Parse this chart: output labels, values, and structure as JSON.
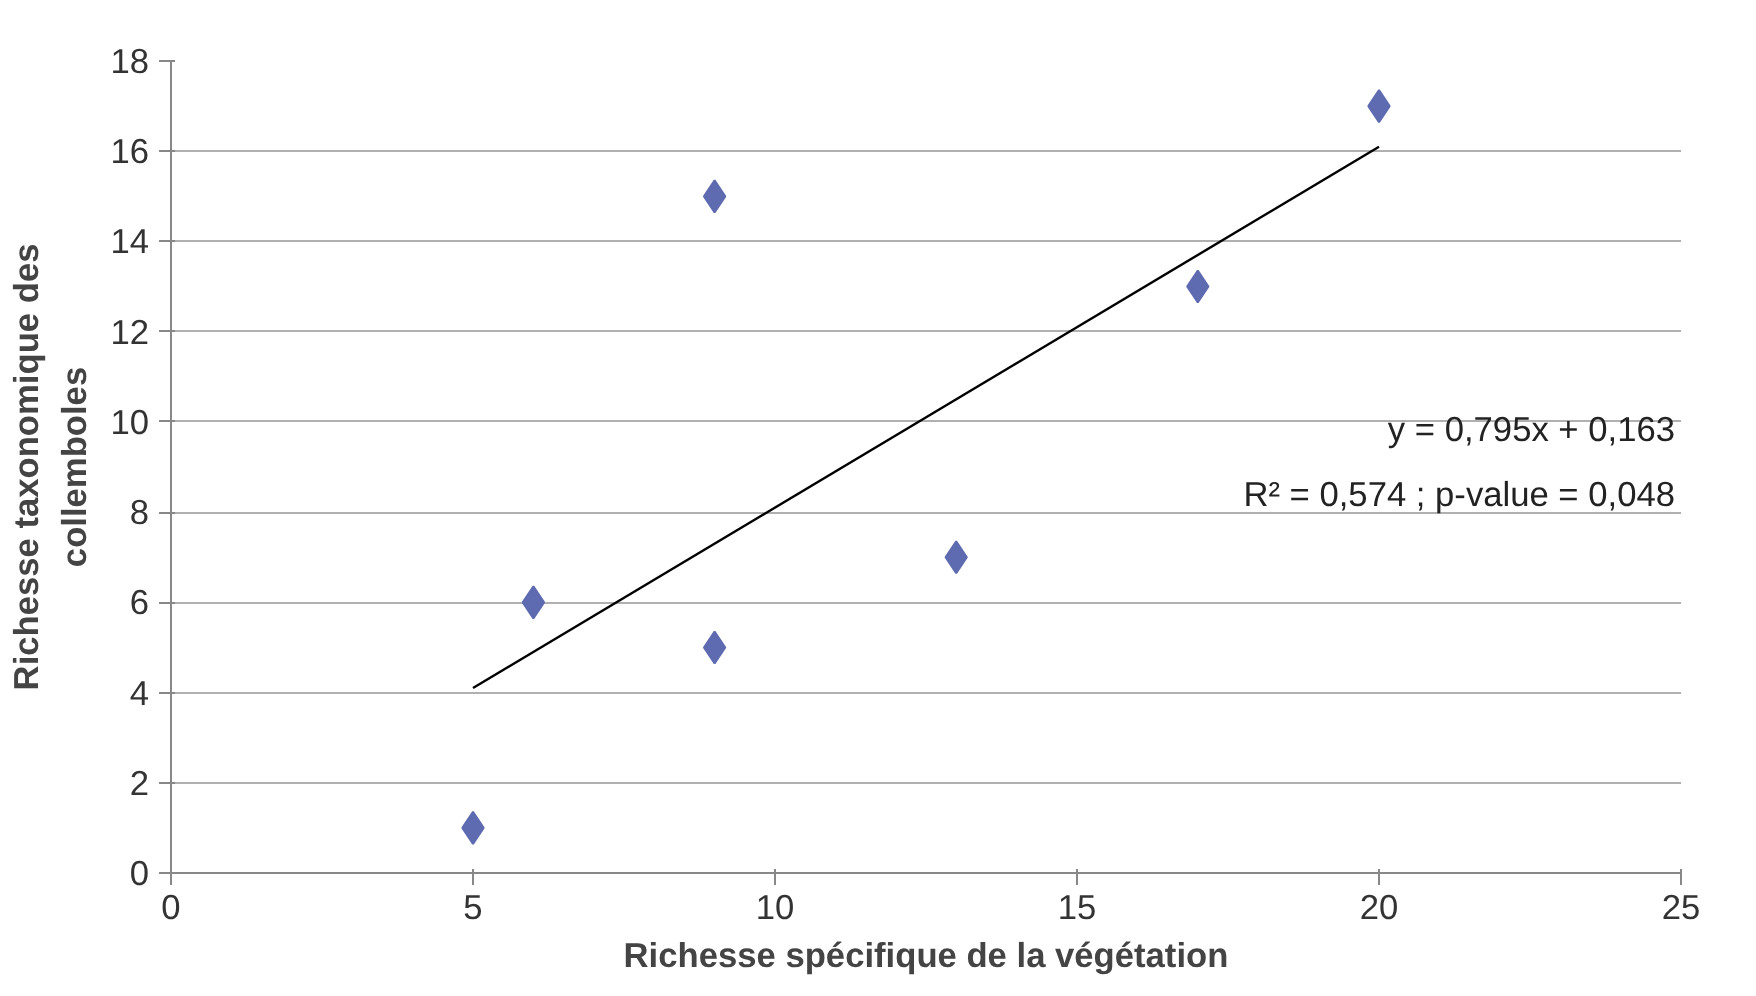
{
  "chart_data": {
    "type": "scatter",
    "xlabel": "Richesse spécifique de la végétation",
    "ylabel": "Richesse taxonomique des\ncollemboles",
    "annotations": [
      "y = 0,795x + 0,163",
      "R² = 0,574 ; p-value = 0,048"
    ],
    "series": [
      {
        "type": "scatter",
        "color": "#5e6bb0",
        "marker": "diamond",
        "x": [
          5,
          6,
          9,
          9,
          13,
          17,
          20
        ],
        "values": [
          1,
          6,
          15,
          5,
          7,
          13,
          17
        ]
      },
      {
        "type": "line",
        "color": "#000000",
        "line_style": "solid",
        "marker": "none",
        "x": [
          5,
          20
        ],
        "values": [
          4.1,
          16.1
        ]
      }
    ],
    "xlim": [
      0,
      25
    ],
    "xticks": [
      0,
      5,
      10,
      15,
      20,
      25
    ],
    "ylim": [
      0,
      18
    ],
    "yticks": [
      0,
      2,
      4,
      6,
      8,
      10,
      12,
      14,
      16,
      18
    ],
    "grid": "y",
    "legend": false
  }
}
